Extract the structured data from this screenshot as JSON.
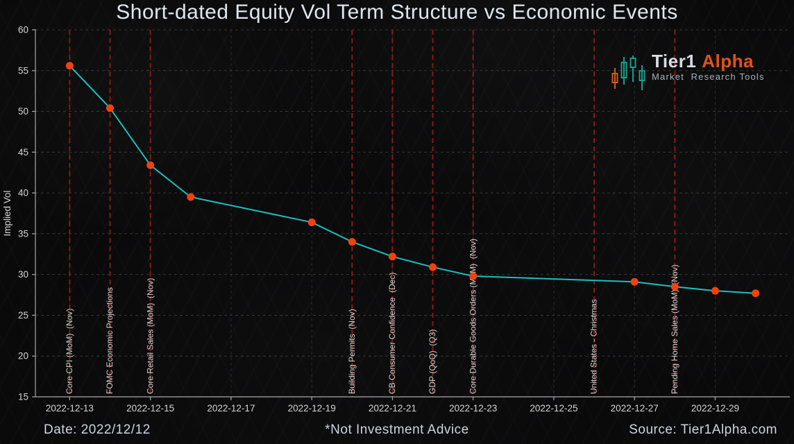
{
  "title": "Short-dated Equity Vol Term Structure vs Economic Events",
  "logo": {
    "brand_primary": "Tier1",
    "brand_secondary": "Alpha",
    "tagline": "Market  Research Tools"
  },
  "footer": {
    "date": "Date: 2022/12/12",
    "disclaimer": "*Not Investment Advice",
    "source": "Source: Tier1Alpha.com"
  },
  "colors": {
    "background": "#0a0a0b",
    "title_text": "#dfe7ee",
    "line": "#1cbfbf",
    "marker": "#f1420e",
    "event_line": "#8a1a0f",
    "event_label": "#d2d2d2",
    "grid_horizontal": "#5a5a5a",
    "grid_vertical": "#4a4a4a",
    "axis_spine": "#a8a8a8",
    "tick_label": "#d6d6d6",
    "brand_orange": "#e05318",
    "brand_teal": "#16a08e"
  },
  "chart_data": {
    "type": "line",
    "title": "Short-dated Equity Vol Term Structure vs Economic Events",
    "xlabel": "",
    "ylabel": "Implied Vol",
    "ylim": [
      15,
      60
    ],
    "ytick_step": 5,
    "grid": true,
    "legend_position": "none",
    "x": [
      "2022-12-13",
      "2022-12-14",
      "2022-12-15",
      "2022-12-16",
      "2022-12-19",
      "2022-12-20",
      "2022-12-21",
      "2022-12-22",
      "2022-12-23",
      "2022-12-27",
      "2022-12-28",
      "2022-12-29",
      "2022-12-30"
    ],
    "series": [
      {
        "name": "Implied Vol",
        "values": [
          55.6,
          50.4,
          43.4,
          39.5,
          36.4,
          34.0,
          32.2,
          30.9,
          29.8,
          29.1,
          28.5,
          28.0,
          27.7
        ]
      }
    ],
    "xticks": [
      "2022-12-13",
      "2022-12-15",
      "2022-12-17",
      "2022-12-19",
      "2022-12-21",
      "2022-12-23",
      "2022-12-25",
      "2022-12-27",
      "2022-12-29"
    ],
    "events": [
      {
        "date": "2022-12-13",
        "label": "Core CPI (MoM)  (Nov)"
      },
      {
        "date": "2022-12-14",
        "label": "FOMC Economic Projections"
      },
      {
        "date": "2022-12-15",
        "label": "Core Retail Sales (MoM)  (Nov)"
      },
      {
        "date": "2022-12-20",
        "label": "Building Permits  (Nov)"
      },
      {
        "date": "2022-12-21",
        "label": "CB Consumer Confidence  (Dec)"
      },
      {
        "date": "2022-12-22",
        "label": "GDP (QoQ)  (Q3)"
      },
      {
        "date": "2022-12-23",
        "label": "Core Durable Goods Orders (MoM)  (Nov)"
      },
      {
        "date": "2022-12-26",
        "label": "United States - Christmas"
      },
      {
        "date": "2022-12-28",
        "label": "Pending Home Sales (MoM)  (Nov)"
      }
    ]
  }
}
